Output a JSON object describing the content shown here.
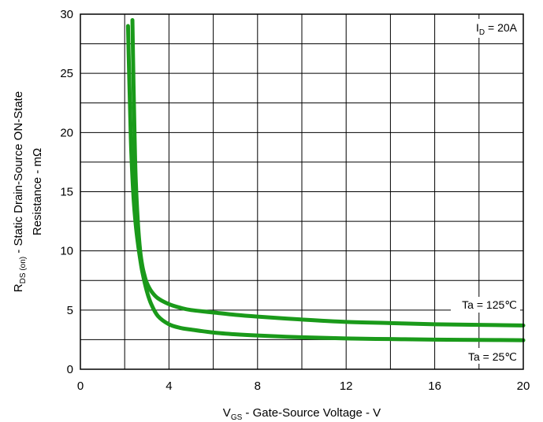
{
  "chart_data": {
    "type": "line",
    "xlim": [
      0,
      20
    ],
    "ylim": [
      0,
      30
    ],
    "x_major_ticks": [
      0,
      4,
      8,
      12,
      16,
      20
    ],
    "y_major_ticks": [
      0,
      5,
      10,
      15,
      20,
      25,
      30
    ],
    "x_gridlines": [
      0,
      2,
      4,
      6,
      8,
      10,
      12,
      14,
      16,
      18,
      20
    ],
    "y_gridlines": [
      0,
      2.5,
      5,
      7.5,
      10,
      12.5,
      15,
      17.5,
      20,
      22.5,
      25,
      27.5,
      30
    ],
    "grid": true,
    "xlabel": {
      "main": "V",
      "sub": "GS",
      "rest": " - Gate-Source Voltage - V"
    },
    "ylabel": {
      "line1_main": "R",
      "line1_sub": "DS (on)",
      "line1_rest": " - Static Drain-Source ON-State",
      "line2": "Resistance - mΩ"
    },
    "condition": {
      "main": "I",
      "sub": "D",
      "rest": " = 20A"
    },
    "line_color": "#1a9a1a",
    "series": [
      {
        "name": "Ta = 125℃",
        "x": [
          2.35,
          2.4,
          2.45,
          2.5,
          2.6,
          2.7,
          2.8,
          2.9,
          3.0,
          3.2,
          3.5,
          4.0,
          4.5,
          5,
          6,
          7,
          8,
          10,
          12,
          14,
          16,
          18,
          20
        ],
        "y": [
          29.5,
          24.0,
          19.5,
          16.0,
          12.3,
          10.0,
          8.7,
          7.9,
          7.3,
          6.6,
          6.0,
          5.5,
          5.2,
          5.0,
          4.8,
          4.6,
          4.45,
          4.2,
          4.0,
          3.9,
          3.8,
          3.75,
          3.7
        ]
      },
      {
        "name": "Ta = 25℃",
        "x": [
          2.15,
          2.2,
          2.25,
          2.3,
          2.4,
          2.5,
          2.6,
          2.7,
          2.8,
          3.0,
          3.2,
          3.5,
          4.0,
          4.5,
          5,
          6,
          7,
          8,
          10,
          12,
          14,
          16,
          18,
          20
        ],
        "y": [
          29.0,
          25.0,
          21.5,
          18.3,
          14.5,
          12.2,
          10.6,
          9.3,
          8.2,
          6.6,
          5.5,
          4.5,
          3.8,
          3.5,
          3.35,
          3.1,
          2.95,
          2.85,
          2.7,
          2.6,
          2.55,
          2.5,
          2.48,
          2.45
        ]
      }
    ]
  }
}
